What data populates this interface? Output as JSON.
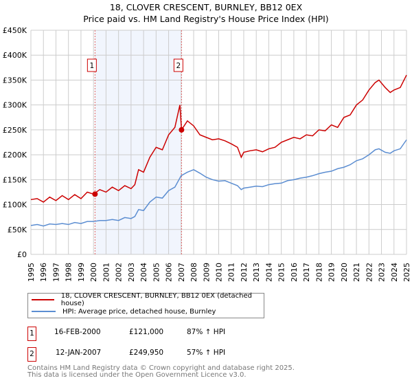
{
  "chart_data": {
    "type": "line",
    "title": "18, CLOVER CRESCENT, BURNLEY, BB12 0EX",
    "subtitle": "Price paid vs. HM Land Registry's House Price Index (HPI)",
    "xlim": [
      1995,
      2025
    ],
    "ylim": [
      0,
      450000
    ],
    "y_ticks": [
      0,
      50000,
      100000,
      150000,
      200000,
      250000,
      300000,
      350000,
      400000,
      450000
    ],
    "y_tick_labels": [
      "£0",
      "£50K",
      "£100K",
      "£150K",
      "£200K",
      "£250K",
      "£300K",
      "£350K",
      "£400K",
      "£450K"
    ],
    "x_ticks": [
      "1995",
      "1996",
      "1997",
      "1998",
      "1999",
      "2000",
      "2001",
      "2002",
      "2003",
      "2004",
      "2005",
      "2006",
      "2007",
      "2008",
      "2009",
      "2010",
      "2011",
      "2012",
      "2013",
      "2014",
      "2015",
      "2016",
      "2017",
      "2018",
      "2019",
      "2020",
      "2021",
      "2022",
      "2023",
      "2024",
      "2025"
    ],
    "grid": true,
    "shaded_region": [
      2000.12,
      2007.03
    ],
    "series": [
      {
        "name": "18, CLOVER CRESCENT, BURNLEY, BB12 0EX (detached house)",
        "color": "#cc0000",
        "x": [
          1995,
          1995.5,
          1996,
          1996.5,
          1997,
          1997.5,
          1998,
          1998.5,
          1999,
          1999.5,
          2000,
          2000.5,
          2001,
          2001.5,
          2002,
          2002.5,
          2003,
          2003.3,
          2003.6,
          2004,
          2004.5,
          2005,
          2005.5,
          2006,
          2006.5,
          2006.9,
          2007.03,
          2007.5,
          2008,
          2008.5,
          2009,
          2009.5,
          2010,
          2010.5,
          2011,
          2011.5,
          2011.8,
          2012,
          2012.5,
          2013,
          2013.5,
          2014,
          2014.5,
          2015,
          2015.5,
          2016,
          2016.5,
          2017,
          2017.5,
          2018,
          2018.5,
          2019,
          2019.5,
          2020,
          2020.5,
          2021,
          2021.5,
          2022,
          2022.5,
          2022.8,
          2023.3,
          2023.7,
          2024,
          2024.5,
          2025
        ],
        "y": [
          110000,
          112000,
          105000,
          115000,
          108000,
          118000,
          110000,
          120000,
          112000,
          125000,
          121000,
          130000,
          125000,
          135000,
          128000,
          138000,
          132000,
          140000,
          170000,
          165000,
          195000,
          215000,
          210000,
          240000,
          255000,
          300000,
          250000,
          268000,
          258000,
          240000,
          235000,
          230000,
          232000,
          228000,
          222000,
          215000,
          195000,
          205000,
          208000,
          210000,
          206000,
          212000,
          215000,
          225000,
          230000,
          235000,
          232000,
          240000,
          238000,
          250000,
          248000,
          260000,
          255000,
          275000,
          280000,
          300000,
          310000,
          330000,
          345000,
          350000,
          335000,
          325000,
          330000,
          335000,
          360000
        ]
      },
      {
        "name": "HPI: Average price, detached house, Burnley",
        "color": "#5b8dd1",
        "x": [
          1995,
          1995.5,
          1996,
          1996.5,
          1997,
          1997.5,
          1998,
          1998.5,
          1999,
          1999.5,
          2000,
          2000.5,
          2001,
          2001.5,
          2002,
          2002.5,
          2003,
          2003.3,
          2003.6,
          2004,
          2004.5,
          2005,
          2005.5,
          2006,
          2006.5,
          2007,
          2007.5,
          2008,
          2008.5,
          2009,
          2009.5,
          2010,
          2010.5,
          2011,
          2011.5,
          2011.8,
          2012,
          2012.5,
          2013,
          2013.5,
          2014,
          2014.5,
          2015,
          2015.5,
          2016,
          2016.5,
          2017,
          2017.5,
          2018,
          2018.5,
          2019,
          2019.5,
          2020,
          2020.5,
          2021,
          2021.5,
          2022,
          2022.5,
          2022.8,
          2023.3,
          2023.7,
          2024,
          2024.5,
          2025
        ],
        "y": [
          58000,
          60000,
          57000,
          61000,
          60000,
          62000,
          60000,
          64000,
          62000,
          66000,
          66000,
          68000,
          68000,
          70000,
          68000,
          74000,
          72000,
          76000,
          90000,
          88000,
          105000,
          115000,
          113000,
          128000,
          135000,
          158000,
          165000,
          170000,
          163000,
          155000,
          150000,
          147000,
          148000,
          143000,
          138000,
          130000,
          133000,
          135000,
          137000,
          136000,
          140000,
          142000,
          143000,
          148000,
          150000,
          153000,
          155000,
          158000,
          162000,
          165000,
          167000,
          172000,
          175000,
          180000,
          188000,
          192000,
          200000,
          210000,
          212000,
          205000,
          203000,
          208000,
          212000,
          230000
        ]
      }
    ],
    "annotations": [
      {
        "label": "1",
        "x": 2000.12,
        "y": 121000
      },
      {
        "label": "2",
        "x": 2007.03,
        "y": 249950
      }
    ]
  },
  "legend": [
    {
      "label": "18, CLOVER CRESCENT, BURNLEY, BB12 0EX (detached house)",
      "color": "#cc0000"
    },
    {
      "label": "HPI: Average price, detached house, Burnley",
      "color": "#5b8dd1"
    }
  ],
  "sales": [
    {
      "num": "1",
      "date": "16-FEB-2000",
      "price": "£121,000",
      "hpi": "87% ↑ HPI"
    },
    {
      "num": "2",
      "date": "12-JAN-2007",
      "price": "£249,950",
      "hpi": "57% ↑ HPI"
    }
  ],
  "footer": {
    "line1": "Contains HM Land Registry data © Crown copyright and database right 2025.",
    "line2": "This data is licensed under the Open Government Licence v3.0."
  }
}
